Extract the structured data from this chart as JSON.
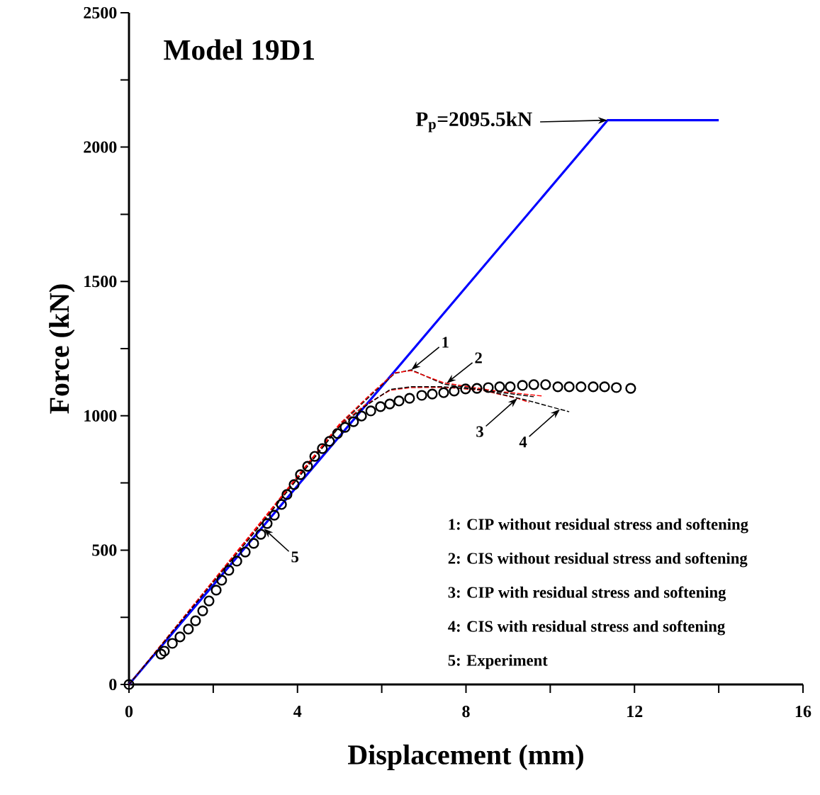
{
  "chart_data": {
    "type": "line",
    "title": "Model 19D1",
    "xlabel": "Displacement (mm)",
    "ylabel": "Force (kN)",
    "xlim": [
      0,
      16
    ],
    "ylim": [
      0,
      2500
    ],
    "xticks": [
      0,
      {
        "value": 2,
        "label": null
      },
      4,
      {
        "value": 6,
        "label": null
      },
      8,
      {
        "value": 10,
        "label": null
      },
      12,
      {
        "value": 14,
        "label": null
      },
      16
    ],
    "yticks": [
      0,
      {
        "value": 250,
        "label": null
      },
      500,
      {
        "value": 750,
        "label": null
      },
      1000,
      {
        "value": 1250,
        "label": null
      },
      1500,
      {
        "value": 1750,
        "label": null
      },
      2000,
      {
        "value": 2250,
        "label": null
      },
      2500
    ],
    "grid": false,
    "series": [
      {
        "color": "#0000ff",
        "line_style": "solid",
        "marker": "none",
        "x": [
          0,
          11.36,
          14
        ],
        "values": [
          0,
          2100,
          2100
        ]
      },
      {
        "color": "#000000",
        "line_style": "dashed",
        "marker": "none",
        "x": [
          0,
          3,
          5,
          5.8,
          6.31,
          6.7,
          7.47,
          8.71,
          9.61
        ],
        "values": [
          0,
          575,
          965,
          1085,
          1158,
          1171,
          1118,
          1089,
          1071
        ]
      },
      {
        "color": "#ff0000",
        "line_style": "dashed",
        "marker": "none",
        "x": [
          0,
          3,
          5,
          5.8,
          6.31,
          6.7,
          7.47,
          8.71,
          9.84
        ],
        "values": [
          0,
          580,
          970,
          1090,
          1160,
          1168,
          1123,
          1092,
          1073
        ]
      },
      {
        "color": "#ff0000",
        "line_style": "dashed",
        "marker": "none",
        "x": [
          0,
          3,
          5,
          5.6,
          6.2,
          6.7,
          7.47,
          8.38,
          9.22,
          9.5
        ],
        "values": [
          0,
          575,
          965,
          1040,
          1095,
          1105,
          1106,
          1095,
          1065,
          1050
        ]
      },
      {
        "color": "#000000",
        "line_style": "dashed",
        "marker": "none",
        "x": [
          0,
          3,
          5,
          5.6,
          6.2,
          6.7,
          7.47,
          8.38,
          9.39,
          10.45
        ],
        "values": [
          0,
          570,
          960,
          1035,
          1098,
          1108,
          1108,
          1097,
          1060,
          1015
        ]
      },
      {
        "type": "scatter",
        "color": "#000000",
        "marker": "circle",
        "x": [
          0,
          0.76,
          0.84,
          1.03,
          1.21,
          1.41,
          1.58,
          1.75,
          1.9,
          2.07,
          2.2,
          2.37,
          2.56,
          2.76,
          2.96,
          3.13,
          3.28,
          3.45,
          3.62,
          3.75,
          3.92,
          4.07,
          4.24,
          4.41,
          4.59,
          4.76,
          4.95,
          5.13,
          5.33,
          5.52,
          5.74,
          5.97,
          6.19,
          6.41,
          6.66,
          6.95,
          7.2,
          7.47,
          7.72,
          7.99,
          8.26,
          8.53,
          8.8,
          9.05,
          9.34,
          9.61,
          9.89,
          10.18,
          10.45,
          10.73,
          11.02,
          11.29,
          11.57,
          11.91
        ],
        "values": [
          0,
          113,
          124,
          153,
          177,
          206,
          237,
          274,
          311,
          351,
          388,
          425,
          459,
          493,
          525,
          559,
          599,
          630,
          670,
          707,
          744,
          781,
          812,
          849,
          878,
          905,
          934,
          957,
          978,
          999,
          1018,
          1034,
          1044,
          1055,
          1065,
          1076,
          1081,
          1086,
          1092,
          1100,
          1102,
          1105,
          1108,
          1108,
          1113,
          1116,
          1116,
          1108,
          1108,
          1108,
          1108,
          1108,
          1105,
          1102
        ]
      }
    ],
    "annotations": [
      "P$_{p}$=2095.5kN",
      {
        "text": "1",
        "x": 6.7,
        "y": 1171
      },
      {
        "text": "2",
        "x": 7.54,
        "y": 1121
      },
      {
        "text": "3",
        "x": 9.22,
        "y": 1065
      },
      {
        "text": "4",
        "x": 10.23,
        "y": 1024
      },
      {
        "text": "5",
        "x": 3.2,
        "y": 580
      },
      "1: CIP without residual stress and softening",
      "2: CIS without residual stress and softening",
      "3: CIP with residual stress and softening",
      "4: CIS with residual stress and softening",
      "5: Experiment"
    ]
  }
}
